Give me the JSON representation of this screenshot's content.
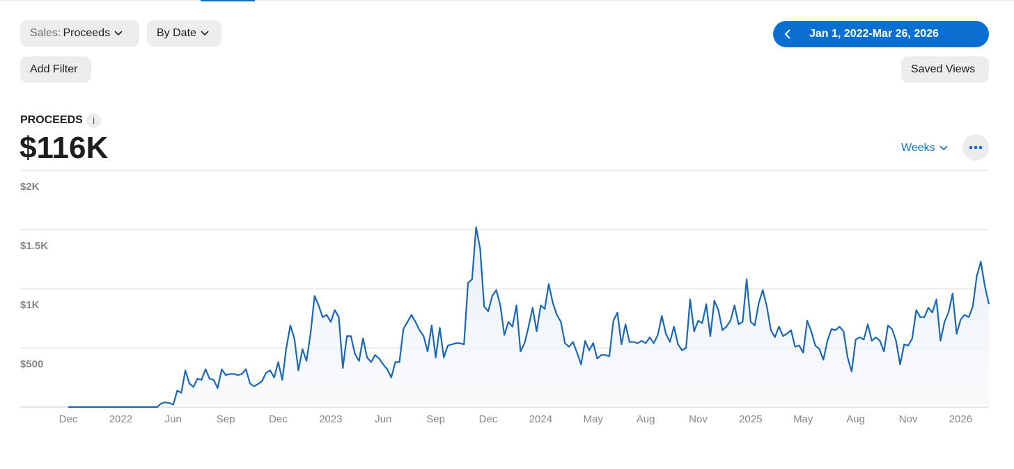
{
  "toolbar": {
    "metric_prefix": "Sales:",
    "metric": "Proceeds",
    "grouping": "By Date",
    "add_filter": "Add Filter",
    "date_range": "Jan 1, 2022-Mar 26, 2026",
    "saved_views": "Saved Views"
  },
  "summary": {
    "label": "PROCEEDS",
    "info": "i",
    "total": "$116K",
    "period": "Weeks"
  },
  "chart_data": {
    "type": "line",
    "color": "#1a66b8",
    "grid": true,
    "ylim": [
      0,
      2000
    ],
    "yticks": [
      {
        "value": 500,
        "label": "$500"
      },
      {
        "value": 1000,
        "label": "$1K"
      },
      {
        "value": 1500,
        "label": "$1.5K"
      },
      {
        "value": 2000,
        "label": "$2K"
      }
    ],
    "categories": [
      "Dec",
      null,
      null,
      null,
      null,
      null,
      null,
      null,
      null,
      null,
      null,
      null,
      null,
      "2022",
      null,
      null,
      null,
      null,
      null,
      null,
      null,
      null,
      null,
      null,
      null,
      null,
      "Jun",
      null,
      null,
      null,
      null,
      null,
      null,
      null,
      null,
      null,
      null,
      null,
      null,
      "Sep",
      null,
      null,
      null,
      null,
      null,
      null,
      null,
      null,
      null,
      null,
      null,
      null,
      "Dec",
      null,
      null,
      null,
      null,
      null,
      null,
      null,
      null,
      null,
      null,
      null,
      null,
      "2023",
      null,
      null,
      null,
      null,
      null,
      null,
      null,
      null,
      null,
      null,
      null,
      null,
      "Jun",
      null,
      null,
      null,
      null,
      null,
      null,
      null,
      null,
      null,
      null,
      null,
      null,
      "Sep",
      null,
      null,
      null,
      null,
      null,
      null,
      null,
      null,
      null,
      null,
      null,
      null,
      "Dec",
      null,
      null,
      null,
      null,
      null,
      null,
      null,
      null,
      null,
      null,
      null,
      null,
      "2024",
      null,
      null,
      null,
      null,
      null,
      null,
      null,
      null,
      null,
      null,
      null,
      null,
      "May",
      null,
      null,
      null,
      null,
      null,
      null,
      null,
      null,
      null,
      null,
      null,
      null,
      "Aug",
      null,
      null,
      null,
      null,
      null,
      null,
      null,
      null,
      null,
      null,
      null,
      null,
      "Nov",
      null,
      null,
      null,
      null,
      null,
      null,
      null,
      null,
      null,
      null,
      null,
      null,
      "2025",
      null,
      null,
      null,
      null,
      null,
      null,
      null,
      null,
      null,
      null,
      null,
      null,
      "May",
      null,
      null,
      null,
      null,
      null,
      null,
      null,
      null,
      null,
      null,
      null,
      null,
      "Aug",
      null,
      null,
      null,
      null,
      null,
      null,
      null,
      null,
      null,
      null,
      null,
      null,
      "Nov",
      null,
      null,
      null,
      null,
      null,
      null,
      null,
      null,
      null,
      null,
      null,
      null,
      "2026",
      null,
      null,
      null,
      null,
      null,
      null,
      null
    ],
    "values": [
      0,
      0,
      0,
      0,
      0,
      0,
      0,
      0,
      0,
      0,
      0,
      0,
      0,
      0,
      0,
      0,
      0,
      0,
      0,
      0,
      0,
      0,
      0,
      30,
      40,
      35,
      20,
      140,
      120,
      310,
      200,
      170,
      240,
      230,
      320,
      240,
      230,
      160,
      320,
      270,
      280,
      280,
      270,
      280,
      320,
      200,
      175,
      195,
      220,
      290,
      310,
      250,
      380,
      230,
      500,
      690,
      580,
      310,
      490,
      390,
      620,
      940,
      860,
      760,
      780,
      720,
      820,
      760,
      330,
      600,
      600,
      450,
      390,
      580,
      420,
      380,
      440,
      410,
      360,
      320,
      250,
      380,
      380,
      660,
      720,
      780,
      720,
      650,
      600,
      470,
      690,
      420,
      670,
      420,
      520,
      530,
      540,
      540,
      530,
      1050,
      1080,
      1520,
      1340,
      850,
      810,
      940,
      990,
      860,
      610,
      720,
      680,
      860,
      470,
      540,
      680,
      840,
      640,
      860,
      830,
      1040,
      880,
      780,
      720,
      540,
      510,
      550,
      460,
      360,
      560,
      480,
      540,
      410,
      440,
      440,
      430,
      730,
      800,
      530,
      700,
      550,
      550,
      540,
      560,
      540,
      590,
      540,
      610,
      770,
      620,
      550,
      680,
      530,
      480,
      500,
      910,
      640,
      730,
      710,
      870,
      600,
      900,
      820,
      650,
      680,
      730,
      860,
      700,
      720,
      1080,
      720,
      690,
      880,
      990,
      850,
      650,
      590,
      680,
      600,
      620,
      650,
      510,
      520,
      460,
      730,
      640,
      520,
      490,
      400,
      560,
      660,
      650,
      680,
      640,
      420,
      300,
      570,
      590,
      570,
      700,
      560,
      590,
      560,
      470,
      690,
      660,
      560,
      360,
      530,
      520,
      580,
      820,
      760,
      760,
      840,
      800,
      910,
      560,
      720,
      800,
      960,
      620,
      740,
      780,
      760,
      850,
      1110,
      1230,
      1020,
      870
    ]
  }
}
